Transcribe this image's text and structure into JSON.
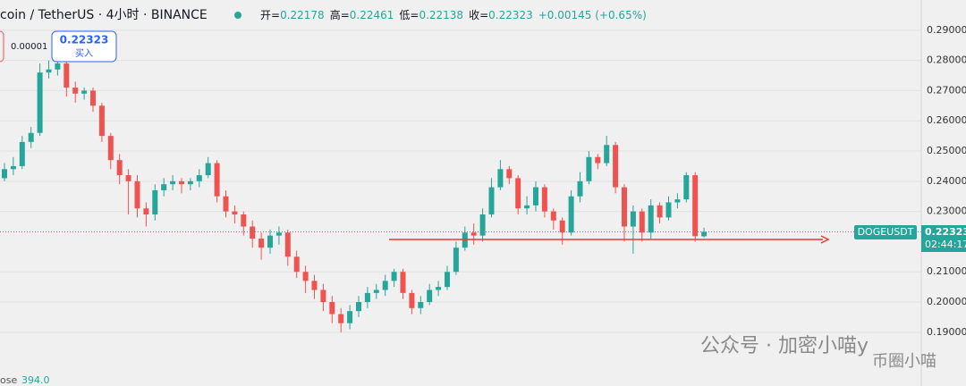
{
  "chart_data": {
    "type": "candlestick",
    "title": "coin / TetherUS · 4小时 · BINANCE",
    "ohlc_labels": [
      "开=",
      "高=",
      "低=",
      "收="
    ],
    "change": "+0.00145 (+0.65%)",
    "spread": "0.00001",
    "buy": "买入",
    "symbol": "DOGEUSDT",
    "countdown": "02:44:17",
    "volume_label": "ose",
    "volume_value": "394.0",
    "watermark": [
      "公众号 · 加密小喵y",
      "币圈小喵"
    ],
    "up_color": "#26a69a",
    "down_color": "#ef5350",
    "ylim": [
      0.1722,
      0.3
    ],
    "yticks": [
      {
        "value": 0.29,
        "label": "0.29000"
      },
      {
        "value": 0.28,
        "label": "0.28000"
      },
      {
        "value": 0.27,
        "label": "0.27000"
      },
      {
        "value": 0.26,
        "label": "0.26000"
      },
      {
        "value": 0.25,
        "label": "0.25000"
      },
      {
        "value": 0.24,
        "label": "0.24000"
      },
      {
        "value": 0.23,
        "label": "0.23000"
      },
      {
        "value": 0.21,
        "label": "0.21000"
      },
      {
        "value": 0.2,
        "label": "0.20000"
      },
      {
        "value": 0.19,
        "label": "0.19000"
      }
    ],
    "grid": true,
    "open": [
      0.241,
      0.244,
      0.245,
      0.253,
      0.256,
      0.276,
      0.277,
      0.279,
      0.271,
      0.269,
      0.27,
      0.265,
      0.255,
      0.247,
      0.242,
      0.24,
      0.231,
      0.229,
      0.237,
      0.239,
      0.24,
      0.239,
      0.24,
      0.242,
      0.246,
      0.235,
      0.23,
      0.229,
      0.225,
      0.221,
      0.218,
      0.222,
      0.223,
      0.215,
      0.21,
      0.207,
      0.204,
      0.2,
      0.196,
      0.193,
      0.197,
      0.2,
      0.203,
      0.204,
      0.207,
      0.21,
      0.203,
      0.198,
      0.2,
      0.204,
      0.205,
      0.21,
      0.218,
      0.223,
      0.222,
      0.229,
      0.238,
      0.244,
      0.241,
      0.231,
      0.232,
      0.238,
      0.23,
      0.227,
      0.223,
      0.235,
      0.24,
      0.248,
      0.246,
      0.252,
      0.238,
      0.225,
      0.23,
      0.223,
      0.232,
      0.228,
      0.233,
      0.234,
      0.242,
      0.22178
    ],
    "high": [
      0.246,
      0.248,
      0.255,
      0.258,
      0.279,
      0.28,
      0.283,
      0.28,
      0.273,
      0.271,
      0.271,
      0.266,
      0.256,
      0.249,
      0.244,
      0.242,
      0.233,
      0.239,
      0.241,
      0.242,
      0.241,
      0.241,
      0.244,
      0.248,
      0.247,
      0.237,
      0.232,
      0.23,
      0.227,
      0.223,
      0.224,
      0.225,
      0.224,
      0.217,
      0.212,
      0.209,
      0.206,
      0.202,
      0.198,
      0.199,
      0.202,
      0.205,
      0.206,
      0.209,
      0.211,
      0.211,
      0.204,
      0.202,
      0.206,
      0.207,
      0.212,
      0.22,
      0.225,
      0.226,
      0.231,
      0.241,
      0.247,
      0.245,
      0.242,
      0.235,
      0.24,
      0.239,
      0.231,
      0.228,
      0.237,
      0.243,
      0.25,
      0.249,
      0.255,
      0.253,
      0.239,
      0.232,
      0.231,
      0.234,
      0.233,
      0.235,
      0.236,
      0.243,
      0.243,
      0.22461
    ],
    "low": [
      0.24,
      0.242,
      0.244,
      0.251,
      0.255,
      0.274,
      0.275,
      0.268,
      0.266,
      0.267,
      0.263,
      0.253,
      0.244,
      0.239,
      0.229,
      0.228,
      0.225,
      0.227,
      0.235,
      0.237,
      0.236,
      0.237,
      0.238,
      0.241,
      0.233,
      0.228,
      0.226,
      0.222,
      0.218,
      0.214,
      0.216,
      0.219,
      0.212,
      0.208,
      0.203,
      0.201,
      0.197,
      0.193,
      0.19,
      0.191,
      0.195,
      0.198,
      0.201,
      0.202,
      0.205,
      0.201,
      0.196,
      0.196,
      0.199,
      0.202,
      0.204,
      0.209,
      0.217,
      0.219,
      0.22,
      0.228,
      0.237,
      0.239,
      0.229,
      0.229,
      0.23,
      0.228,
      0.224,
      0.219,
      0.222,
      0.233,
      0.239,
      0.244,
      0.245,
      0.236,
      0.22,
      0.216,
      0.22,
      0.221,
      0.226,
      0.227,
      0.231,
      0.233,
      0.22,
      0.22138
    ],
    "close": [
      0.244,
      0.245,
      0.253,
      0.256,
      0.276,
      0.277,
      0.279,
      0.271,
      0.269,
      0.27,
      0.265,
      0.255,
      0.247,
      0.242,
      0.24,
      0.231,
      0.229,
      0.237,
      0.239,
      0.24,
      0.239,
      0.24,
      0.242,
      0.246,
      0.235,
      0.23,
      0.229,
      0.225,
      0.221,
      0.218,
      0.222,
      0.223,
      0.215,
      0.21,
      0.207,
      0.204,
      0.2,
      0.196,
      0.193,
      0.197,
      0.2,
      0.203,
      0.204,
      0.207,
      0.21,
      0.203,
      0.198,
      0.2,
      0.204,
      0.205,
      0.21,
      0.218,
      0.223,
      0.222,
      0.229,
      0.238,
      0.244,
      0.241,
      0.231,
      0.232,
      0.238,
      0.23,
      0.227,
      0.223,
      0.235,
      0.24,
      0.248,
      0.246,
      0.252,
      0.238,
      0.225,
      0.23,
      0.223,
      0.232,
      0.228,
      0.233,
      0.234,
      0.242,
      0.2218,
      0.22323
    ]
  }
}
